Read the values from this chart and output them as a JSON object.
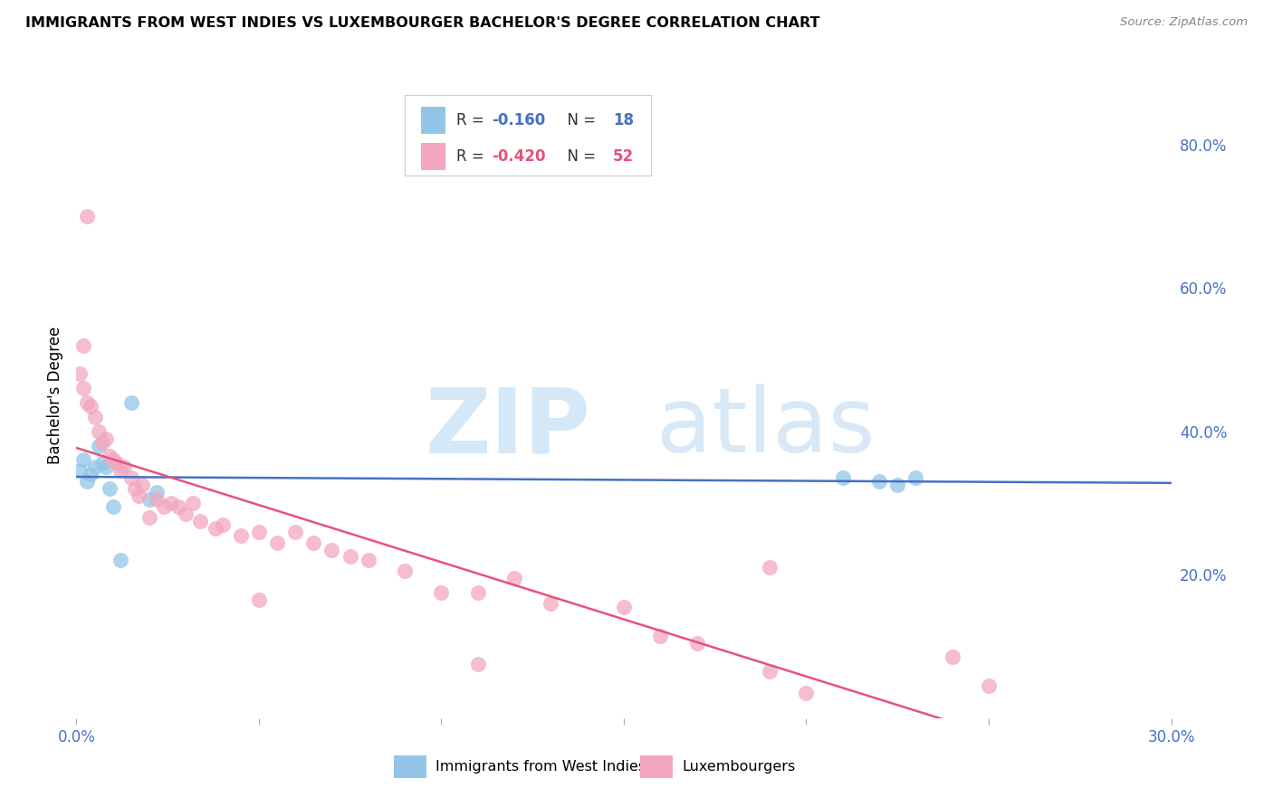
{
  "title": "IMMIGRANTS FROM WEST INDIES VS LUXEMBOURGER BACHELOR'S DEGREE CORRELATION CHART",
  "source": "Source: ZipAtlas.com",
  "ylabel": "Bachelor's Degree",
  "x_min": 0.0,
  "x_max": 0.3,
  "y_min": 0.0,
  "y_max": 0.9,
  "blue_color": "#92C5E8",
  "pink_color": "#F2A7BE",
  "blue_line_color": "#4472C4",
  "pink_line_color": "#E8527A",
  "legend_blue_r": "-0.160",
  "legend_blue_n": "18",
  "legend_pink_r": "-0.420",
  "legend_pink_n": "52",
  "legend_label_blue": "Immigrants from West Indies",
  "legend_label_pink": "Luxembourgers",
  "blue_scatter_x": [
    0.001,
    0.002,
    0.003,
    0.004,
    0.005,
    0.006,
    0.007,
    0.008,
    0.009,
    0.01,
    0.012,
    0.015,
    0.02,
    0.022,
    0.21,
    0.22,
    0.225,
    0.23
  ],
  "blue_scatter_y": [
    0.345,
    0.36,
    0.33,
    0.34,
    0.35,
    0.38,
    0.355,
    0.35,
    0.32,
    0.295,
    0.22,
    0.44,
    0.305,
    0.315,
    0.335,
    0.33,
    0.325,
    0.335
  ],
  "pink_scatter_x": [
    0.001,
    0.002,
    0.003,
    0.004,
    0.005,
    0.006,
    0.007,
    0.008,
    0.009,
    0.01,
    0.011,
    0.012,
    0.013,
    0.015,
    0.016,
    0.017,
    0.018,
    0.02,
    0.022,
    0.024,
    0.026,
    0.028,
    0.03,
    0.032,
    0.034,
    0.038,
    0.04,
    0.045,
    0.05,
    0.055,
    0.06,
    0.065,
    0.07,
    0.075,
    0.08,
    0.09,
    0.1,
    0.11,
    0.12,
    0.13,
    0.15,
    0.16,
    0.17,
    0.19,
    0.2,
    0.002,
    0.003,
    0.24,
    0.25,
    0.19,
    0.05,
    0.11
  ],
  "pink_scatter_y": [
    0.48,
    0.46,
    0.44,
    0.435,
    0.42,
    0.4,
    0.385,
    0.39,
    0.365,
    0.36,
    0.355,
    0.345,
    0.35,
    0.335,
    0.32,
    0.31,
    0.325,
    0.28,
    0.305,
    0.295,
    0.3,
    0.295,
    0.285,
    0.3,
    0.275,
    0.265,
    0.27,
    0.255,
    0.26,
    0.245,
    0.26,
    0.245,
    0.235,
    0.225,
    0.22,
    0.205,
    0.175,
    0.175,
    0.195,
    0.16,
    0.155,
    0.115,
    0.105,
    0.065,
    0.035,
    0.52,
    0.7,
    0.085,
    0.045,
    0.21,
    0.165,
    0.075
  ],
  "watermark_zip": "ZIP",
  "watermark_atlas": "atlas",
  "grid_color": "#DCDCDC",
  "background_color": "#FFFFFF"
}
